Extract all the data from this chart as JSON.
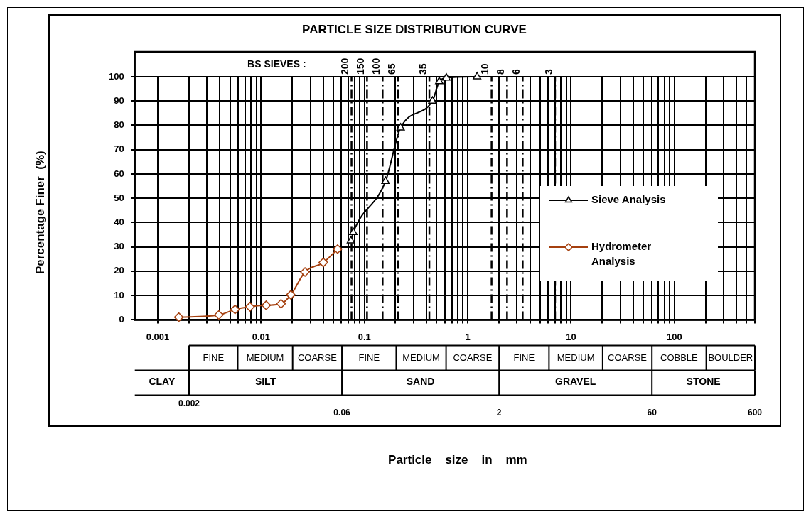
{
  "chart_data": {
    "type": "line",
    "title": "PARTICLE SIZE DISTRIBUTION CURVE",
    "series": [
      {
        "name": "Sieve Analysis",
        "color": "#000000",
        "marker": "triangle",
        "x": [
          0.074,
          0.078,
          0.16,
          0.224,
          0.455,
          0.53,
          0.62,
          1.23
        ],
        "values": [
          32.5,
          36,
          57,
          79,
          90,
          98,
          99.5,
          100
        ]
      },
      {
        "name": "Hydrometer Analysis",
        "color": "#a5400f",
        "marker": "diamond",
        "x": [
          0.0016,
          0.0039,
          0.0056,
          0.0078,
          0.0112,
          0.0156,
          0.0194,
          0.0266,
          0.04,
          0.055
        ],
        "values": [
          1.1,
          2,
          4.3,
          5.4,
          6,
          6.6,
          10.3,
          19.7,
          23.6,
          29.1
        ]
      }
    ],
    "log": "x",
    "xlim": [
      0.0006,
      600
    ],
    "ylim": [
      0,
      100
    ],
    "xticks": [
      0.001,
      {
        "value": 0.002,
        "label": null
      },
      {
        "value": 0.003,
        "label": null
      },
      {
        "value": 0.004,
        "label": null
      },
      {
        "value": 0.005,
        "label": null
      },
      {
        "value": 0.006,
        "label": null
      },
      {
        "value": 0.007,
        "label": null
      },
      {
        "value": 0.008,
        "label": null
      },
      {
        "value": 0.009,
        "label": null
      },
      0.01,
      {
        "value": 0.02,
        "label": null
      },
      {
        "value": 0.03,
        "label": null
      },
      {
        "value": 0.04,
        "label": null
      },
      {
        "value": 0.05,
        "label": null
      },
      {
        "value": 0.06,
        "label": null
      },
      {
        "value": 0.07,
        "label": null
      },
      {
        "value": 0.08,
        "label": null
      },
      {
        "value": 0.09,
        "label": null
      },
      0.1,
      {
        "value": 0.2,
        "label": null
      },
      {
        "value": 0.3,
        "label": null
      },
      {
        "value": 0.4,
        "label": null
      },
      {
        "value": 0.5,
        "label": null
      },
      {
        "value": 0.6,
        "label": null
      },
      {
        "value": 0.7,
        "label": null
      },
      {
        "value": 0.8,
        "label": null
      },
      {
        "value": 0.9,
        "label": null
      },
      1,
      {
        "value": 2,
        "label": null
      },
      {
        "value": 3,
        "label": null
      },
      {
        "value": 4,
        "label": null
      },
      {
        "value": 5,
        "label": null
      },
      {
        "value": 6,
        "label": null
      },
      {
        "value": 7,
        "label": null
      },
      {
        "value": 8,
        "label": null
      },
      {
        "value": 9,
        "label": null
      },
      10,
      {
        "value": 20,
        "label": null
      },
      {
        "value": 30,
        "label": null
      },
      {
        "value": 40,
        "label": null
      },
      {
        "value": 50,
        "label": null
      },
      {
        "value": 60,
        "label": null
      },
      {
        "value": 70,
        "label": null
      },
      {
        "value": 80,
        "label": null
      },
      {
        "value": 90,
        "label": null
      },
      100,
      {
        "value": 200,
        "label": null
      },
      {
        "value": 300,
        "label": null
      },
      {
        "value": 400,
        "label": null
      },
      {
        "value": 500,
        "label": null
      },
      {
        "value": 600,
        "label": null
      }
    ],
    "yticks": [
      0,
      10,
      20,
      30,
      40,
      50,
      60,
      70,
      80,
      90,
      100
    ],
    "grid": true,
    "legend": "right",
    "ref_lines": [
      {
        "axis": "x",
        "value": 0.075,
        "line_style": "dashed"
      },
      {
        "axis": "x",
        "value": 0.106,
        "line_style": "dashed"
      },
      {
        "axis": "x",
        "value": 0.15,
        "line_style": "dashed"
      },
      {
        "axis": "x",
        "value": 0.212,
        "line_style": "dashed"
      },
      {
        "axis": "x",
        "value": 0.425,
        "line_style": "dashed"
      },
      {
        "axis": "x",
        "value": 1.7,
        "line_style": "dashed"
      },
      {
        "axis": "x",
        "value": 2.4,
        "line_style": "dashed"
      },
      {
        "axis": "x",
        "value": 3.4,
        "line_style": "dashed"
      },
      {
        "axis": "x",
        "value": 7,
        "line_style": "dashed"
      }
    ],
    "annotations": [
      "BS SIEVES :",
      {
        "text": "200",
        "x": 0.075,
        "y": 100
      },
      {
        "text": "150",
        "x": 0.106,
        "y": 100
      },
      {
        "text": "100",
        "x": 0.15,
        "y": 100
      },
      {
        "text": "65",
        "x": 0.212,
        "y": 100
      },
      {
        "text": "35",
        "x": 0.425,
        "y": 100
      },
      {
        "text": "10",
        "x": 1.7,
        "y": 100
      },
      {
        "text": "8",
        "x": 2.4,
        "y": 100
      },
      {
        "text": "6",
        "x": 3.4,
        "y": 100
      },
      {
        "text": "3",
        "x": 7,
        "y": 100
      },
      "FINE",
      "MEDIUM",
      "COARSE",
      "FINE",
      "MEDIUM",
      "COARSE",
      "FINE",
      "MEDIUM",
      "COARSE",
      "COBBLE",
      "BOULDER",
      "CLAY",
      "SILT",
      "SAND",
      "GRAVEL",
      "STONE",
      "0.002",
      "0.06",
      "2",
      "60",
      "600",
      "Particle    size    in    mm",
      "Percentage Finer  (%)"
    ]
  }
}
